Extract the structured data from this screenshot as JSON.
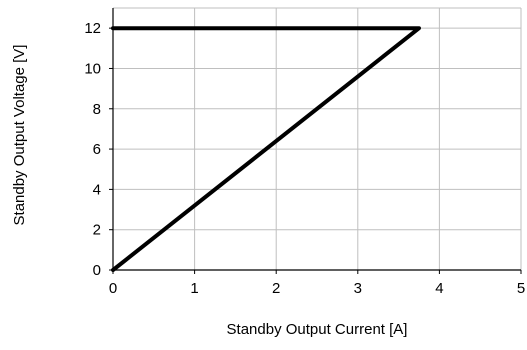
{
  "chart_data": {
    "type": "line",
    "title": "",
    "xlabel": "Standby Output Current [A]",
    "ylabel": "Standby Output Voltage [V]",
    "xlim": [
      0,
      5
    ],
    "ylim": [
      0,
      13
    ],
    "xticks": [
      0,
      1,
      2,
      3,
      4,
      5
    ],
    "yticks": [
      0,
      2,
      4,
      6,
      8,
      10,
      12
    ],
    "grid": true,
    "legend": "none",
    "series": [
      {
        "color": "#000000",
        "x": [
          0,
          3.75,
          0
        ],
        "y": [
          12,
          12,
          0
        ]
      }
    ]
  }
}
